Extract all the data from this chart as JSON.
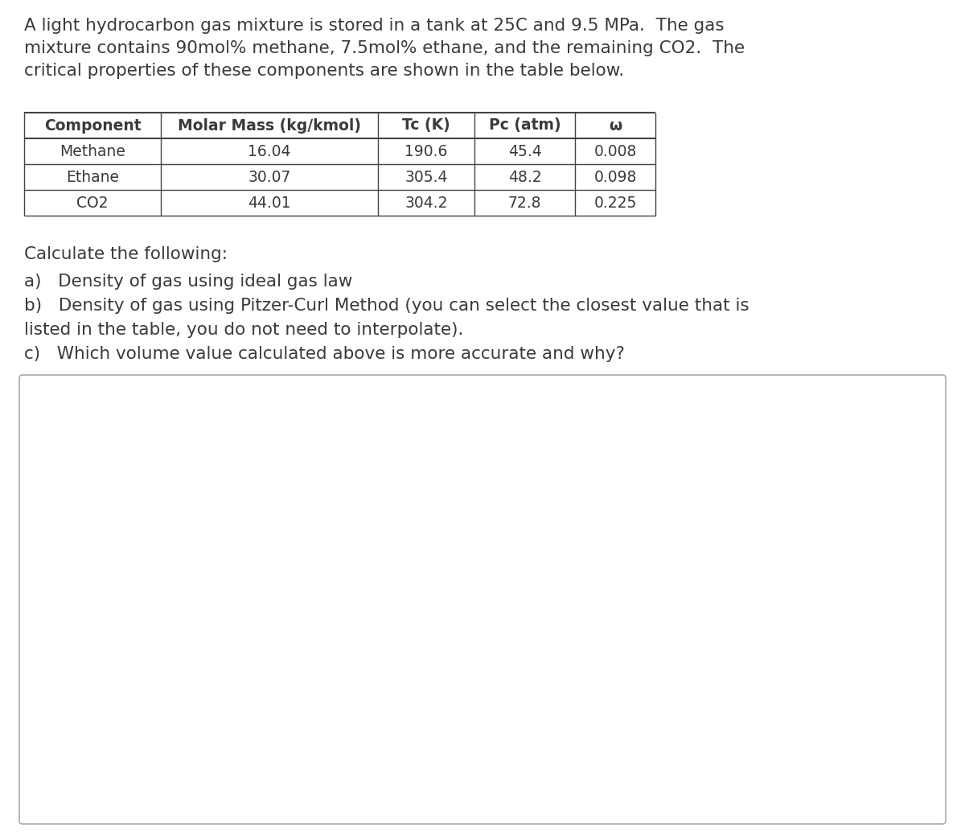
{
  "background_color": "#ffffff",
  "intro_line1": "A light hydrocarbon gas mixture is stored in a tank at 25C and 9.5 MPa.  The gas",
  "intro_line2": "mixture contains 90mol% methane, 7.5mol% ethane, and the remaining CO2.  The",
  "intro_line3": "critical properties of these components are shown in the table below.",
  "table_headers": [
    "Component",
    "Molar Mass (kg/kmol)",
    "Tc (K)",
    "Pc (atm)",
    "ω"
  ],
  "table_rows": [
    [
      "Methane",
      "16.04",
      "190.6",
      "45.4",
      "0.008"
    ],
    [
      "Ethane",
      "30.07",
      "305.4",
      "48.2",
      "0.098"
    ],
    [
      "CO2",
      "44.01",
      "304.2",
      "72.8",
      "0.225"
    ]
  ],
  "calculate_text": "Calculate the following:",
  "item_a": "a)   Density of gas using ideal gas law",
  "item_b1": "b)   Density of gas using Pitzer-Curl Method (you can select the closest value that is",
  "item_b2": "listed in the table, you do not need to interpolate).",
  "item_c": "c)   Which volume value calculated above is more accurate and why?",
  "text_color": "#3a3a3a",
  "table_border_color": "#444444",
  "box_border_color": "#aaaaaa",
  "font_size_intro": 15.5,
  "font_size_table_header": 13.5,
  "font_size_table_data": 13.5,
  "font_size_body": 15.5
}
